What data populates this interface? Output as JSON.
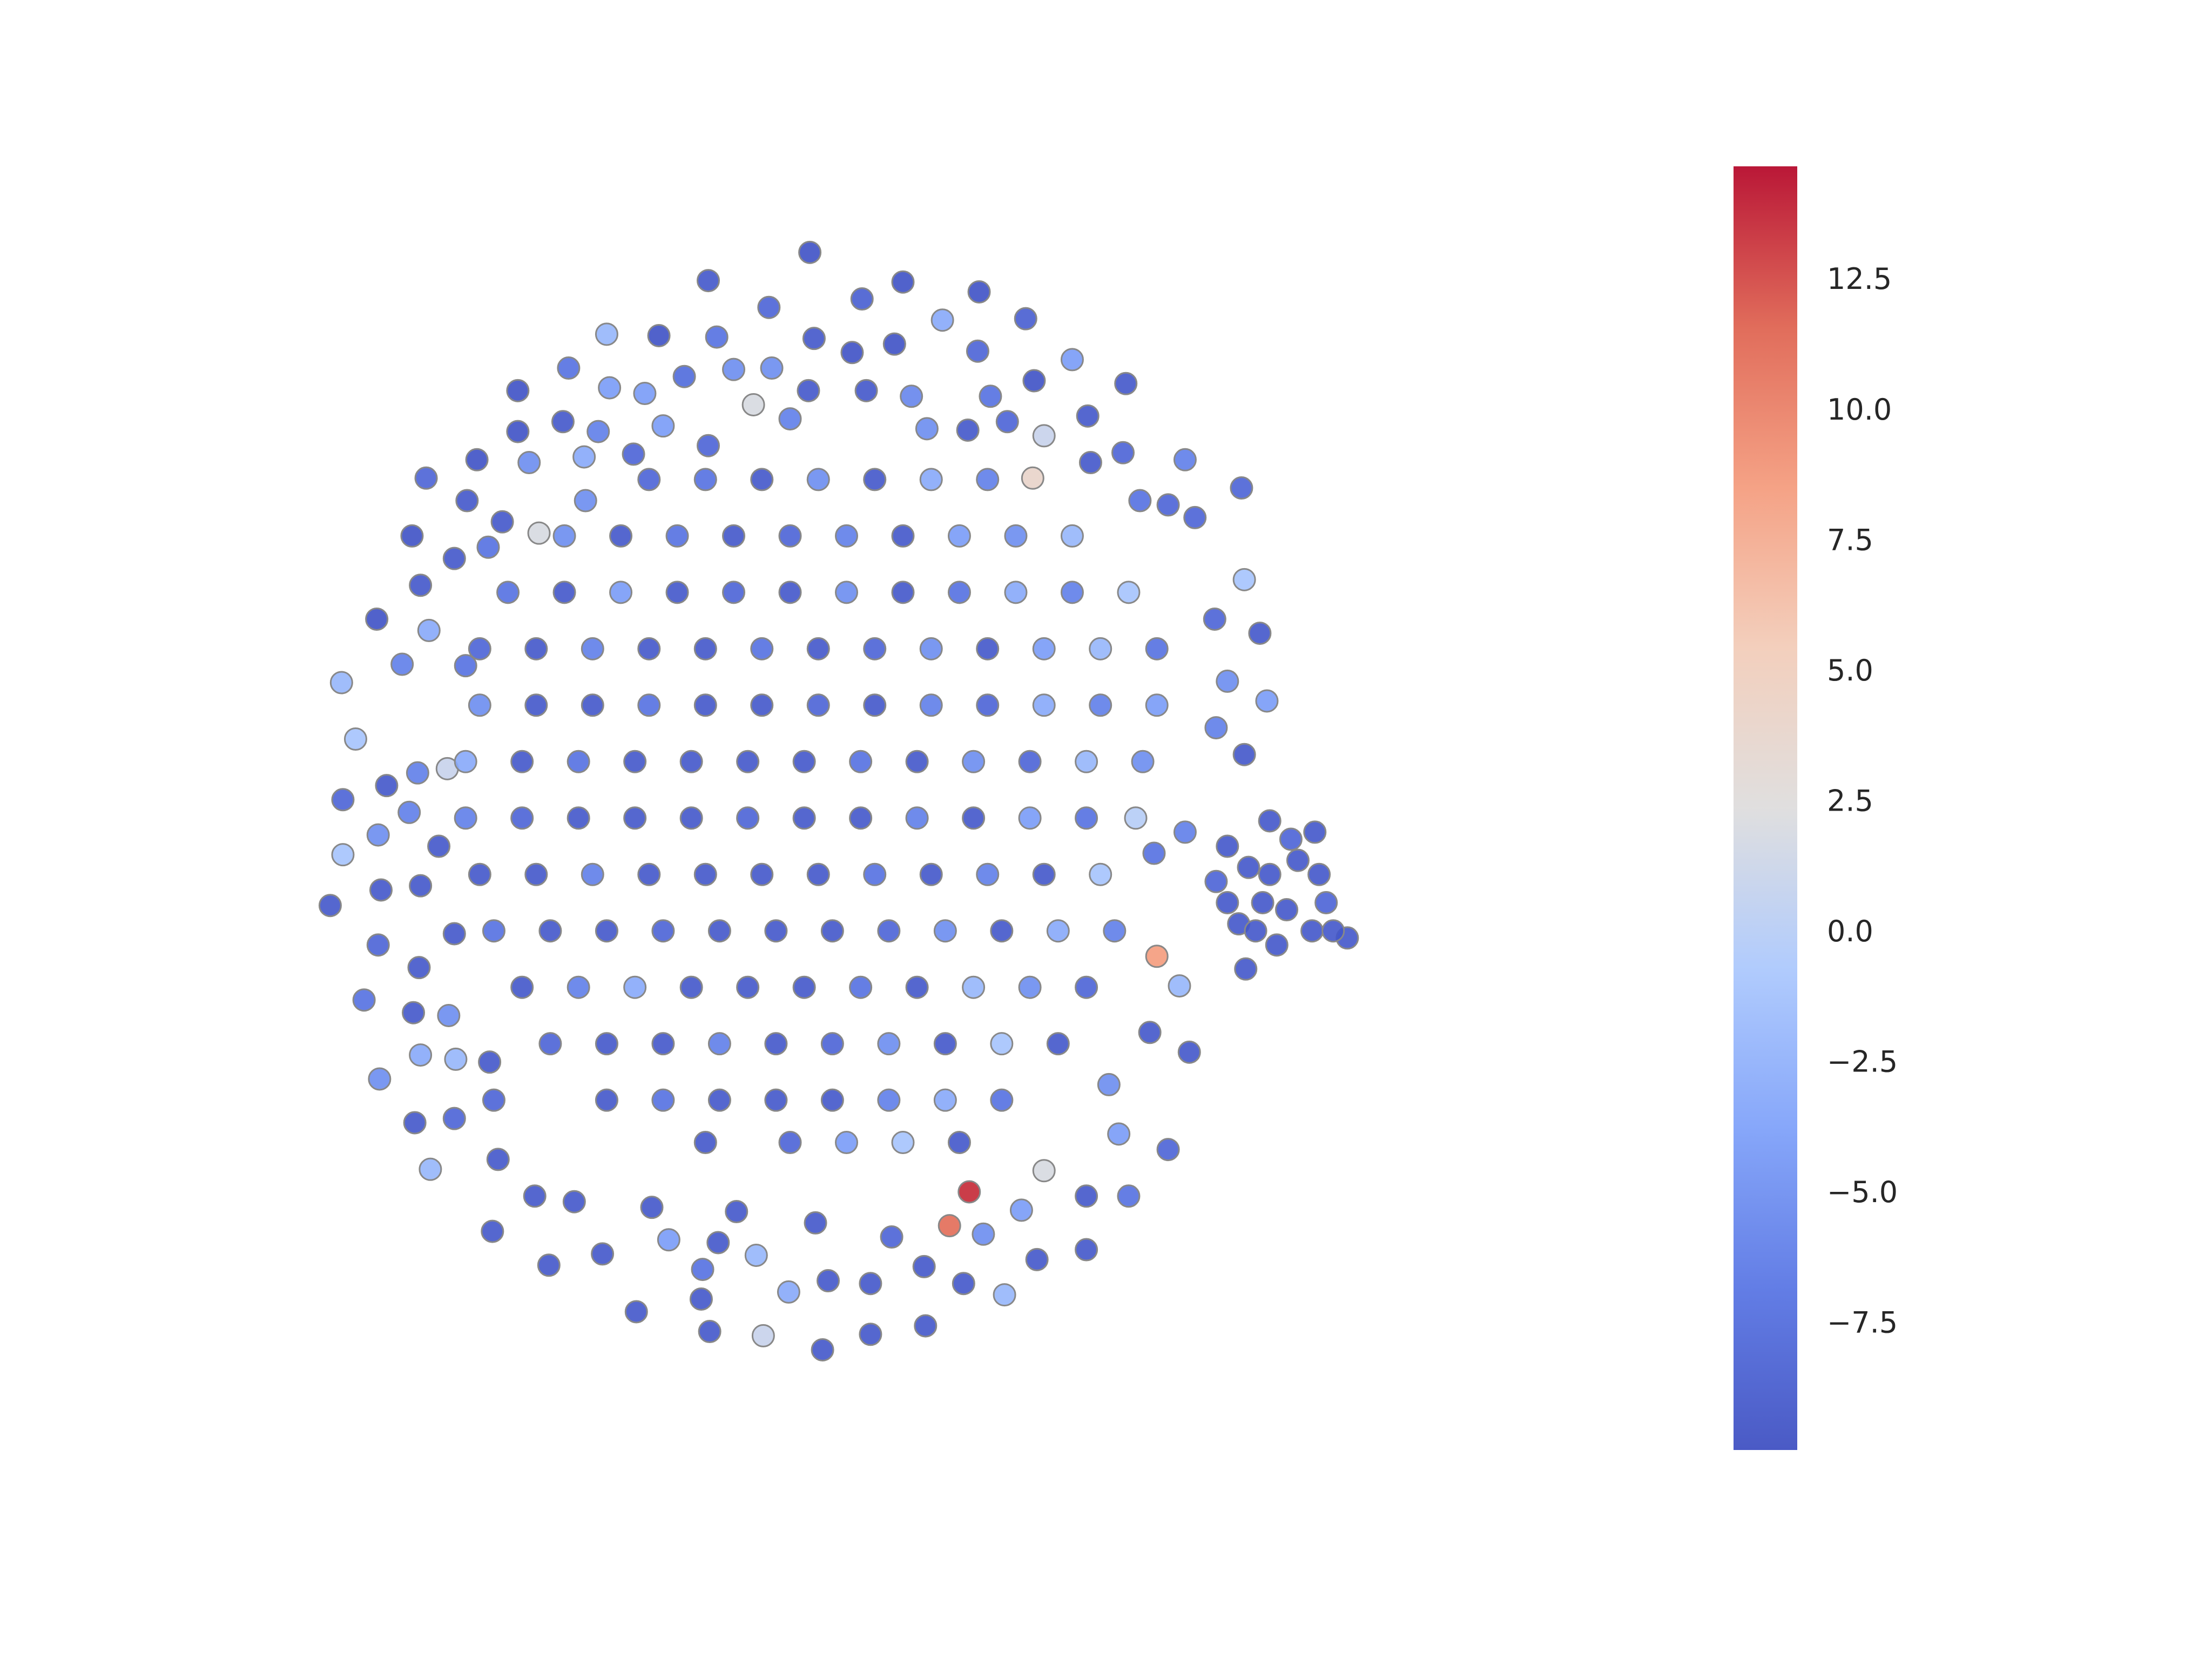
{
  "chart_data": {
    "type": "scatter",
    "x": [
      -26,
      -98,
      40,
      11,
      94,
      127,
      -55,
      -170,
      -133,
      -92,
      -23,
      4,
      34,
      68,
      93,
      160,
      -197,
      -115,
      -80,
      -53,
      -27,
      14,
      46,
      133,
      198,
      -233,
      -168,
      -143,
      -66,
      102,
      171,
      140,
      -233,
      -201,
      -176,
      -130,
      -98,
      -40,
      57,
      86,
      114,
      -298,
      -262,
      -225,
      -186,
      -151,
      173,
      196,
      240,
      280,
      132,
      -308,
      -269,
      -244,
      -218,
      -185,
      208,
      228,
      247,
      -278,
      -254,
      -302,
      -333,
      -296,
      282,
      293,
      261,
      -358,
      -315,
      -270,
      270,
      298,
      -348,
      -326,
      -304,
      -283,
      282,
      262,
      -357,
      -310,
      -332,
      -357,
      -289,
      -366,
      -330,
      -302,
      240,
      218,
      -332,
      -303,
      -278,
      -342,
      -307,
      -282,
      220,
      236,
      -302,
      -277,
      -253,
      -331,
      243,
      215,
      186,
      -306,
      -278,
      -250,
      193,
      228,
      -295,
      -247,
      -221,
      -193,
      140,
      170,
      200,
      -251,
      -211,
      -173,
      -126,
      -91,
      -64,
      -102,
      -41,
      -13,
      17,
      55,
      83,
      112,
      135,
      170,
      -149,
      -103,
      -97,
      -59,
      -17,
      17,
      56,
      87,
      73,
      97,
      124,
      32,
      -22,
      -78,
      -138,
      270,
      285,
      300,
      320,
      335,
      340,
      355,
      330,
      312,
      295,
      278,
      262,
      290,
      305,
      283,
      332,
      315,
      300,
      270,
      345,
      -140,
      -100,
      -60,
      -20,
      20,
      60,
      100,
      -200,
      -160,
      -120,
      -80,
      -40,
      0,
      40,
      80,
      120,
      160,
      -240,
      -200,
      -160,
      -120,
      -80,
      -40,
      0,
      40,
      80,
      120,
      160,
      200,
      -260,
      -220,
      -180,
      -140,
      -100,
      -60,
      -20,
      20,
      60,
      100,
      140,
      180,
      220,
      -260,
      -220,
      -180,
      -140,
      -100,
      -60,
      -20,
      20,
      60,
      100,
      140,
      180,
      220,
      -270,
      -230,
      -190,
      -150,
      -110,
      -70,
      -30,
      10,
      50,
      90,
      130,
      170,
      210,
      -270,
      -230,
      -190,
      -150,
      -110,
      -70,
      -30,
      10,
      50,
      90,
      130,
      170,
      205,
      -260,
      -220,
      -180,
      -140,
      -100,
      -60,
      -20,
      20,
      60,
      100,
      140,
      180,
      -250,
      -210,
      -170,
      -130,
      -90,
      -50,
      -10,
      30,
      70,
      110,
      150,
      190,
      -230,
      -190,
      -150,
      -110,
      -70,
      -30,
      10,
      50,
      90,
      130,
      170,
      -210,
      -170,
      -130,
      -90,
      -50,
      -10,
      30,
      70,
      110,
      150,
      -170,
      -130,
      -90,
      -50,
      -10,
      30,
      70,
      110,
      -100,
      -40,
      0,
      40,
      80
    ],
    "values": [
      421,
      401,
      400,
      388,
      393,
      374,
      382,
      363,
      362,
      361,
      360,
      350,
      356,
      373,
      351,
      345,
      339,
      333,
      338,
      339,
      323,
      323,
      319,
      330,
      328,
      323,
      325,
      321,
      313,
      319,
      305,
      291,
      294,
      301,
      294,
      298,
      284,
      303,
      296,
      295,
      301,
      261,
      274,
      272,
      276,
      278,
      272,
      279,
      274,
      254,
      261,
      220,
      245,
      230,
      222,
      245,
      245,
      242,
      233,
      204,
      212,
      185,
      161,
      153,
      189,
      151,
      161,
      116,
      129,
      128,
      117,
      103,
      76,
      43,
      52,
      55,
      65,
      84,
      33,
      24,
      8,
      -6,
      0,
      -42,
      -31,
      -28,
      10,
      -5,
      -70,
      -86,
      -62,
      -109,
      -118,
      -120,
      -78,
      -99,
      -148,
      -151,
      -153,
      -165,
      -146,
      -132,
      -169,
      -196,
      -193,
      -180,
      -204,
      -215,
      -229,
      -222,
      -248,
      -252,
      -230,
      -248,
      -248,
      -273,
      -297,
      -289,
      -279,
      -281,
      -290,
      -300,
      -316,
      -308,
      -310,
      -298,
      -310,
      -318,
      -293,
      -286,
      -330,
      -321,
      -344,
      -347,
      -357,
      -346,
      -340,
      -245,
      -269,
      -275,
      -258,
      -277,
      -267,
      -259,
      -256,
      0,
      -15,
      18,
      -10,
      -20,
      -40,
      -65,
      -60,
      -45,
      -40,
      -55,
      -25,
      -60,
      -70,
      -87,
      10,
      5,
      -20,
      -40,
      -60,
      260,
      260,
      260,
      260,
      260,
      260,
      260,
      220,
      220,
      220,
      220,
      220,
      220,
      220,
      220,
      220,
      220,
      180,
      180,
      180,
      180,
      180,
      180,
      180,
      180,
      180,
      180,
      180,
      180,
      140,
      140,
      140,
      140,
      140,
      140,
      140,
      140,
      140,
      140,
      140,
      140,
      140,
      100,
      100,
      100,
      100,
      100,
      100,
      100,
      100,
      100,
      100,
      100,
      100,
      100,
      60,
      60,
      60,
      60,
      60,
      60,
      60,
      60,
      60,
      60,
      60,
      60,
      60,
      20,
      20,
      20,
      20,
      20,
      20,
      20,
      20,
      20,
      20,
      20,
      20,
      20,
      -20,
      -20,
      -20,
      -20,
      -20,
      -20,
      -20,
      -20,
      -20,
      -20,
      -20,
      -20,
      -60,
      -60,
      -60,
      -60,
      -60,
      -60,
      -60,
      -60,
      -60,
      -60,
      -60,
      -60,
      -100,
      -100,
      -100,
      -100,
      -100,
      -100,
      -100,
      -100,
      -100,
      -100,
      -100,
      -140,
      -140,
      -140,
      -140,
      -140,
      -140,
      -140,
      -140,
      -140,
      -140,
      -180,
      -180,
      -180,
      -180,
      -180,
      -180,
      -180,
      -180,
      -210,
      -210,
      -210,
      -210,
      -210
    ],
    "color_values": [
      -9.5,
      -9,
      -9.5,
      -8.5,
      -9.5,
      -8.5,
      -8,
      -2,
      -9.5,
      -7,
      -9,
      -9.5,
      -9.5,
      -3,
      -8,
      -4,
      -7,
      -7.5,
      -5,
      -5,
      -9,
      -9,
      -5.5,
      -9.5,
      -9,
      -9.5,
      -4,
      -4,
      2,
      -7,
      -9,
      1,
      -9.5,
      -9,
      -6,
      -4,
      -8,
      -6,
      -5,
      -9,
      -8,
      -8,
      -9.5,
      -5,
      -3,
      -8,
      -9,
      -8,
      -6,
      -8,
      4,
      -9.5,
      -9,
      -9,
      2,
      -5,
      -7,
      -8,
      -8,
      -9,
      -7,
      -9,
      -9.5,
      -3,
      -1,
      -9,
      -8,
      -2,
      -6,
      -7,
      -5,
      -4,
      -1,
      -9,
      -6,
      1,
      -9,
      -6,
      -8,
      -6,
      -5,
      -1,
      -9,
      -9,
      -9,
      -9,
      -6,
      -7,
      -8,
      -9,
      -9,
      -7,
      -9,
      -5,
      8.5,
      -2,
      -3,
      -2,
      -9,
      -5,
      -9,
      -9,
      -5,
      -9,
      -8,
      -8,
      -4,
      -8,
      -2,
      -9,
      -9,
      -9,
      2,
      -9,
      -7,
      -9,
      -9,
      -9,
      -4,
      -9,
      -2,
      -7,
      -3,
      -9,
      -9,
      -9,
      -9,
      -2,
      -9,
      -9,
      -9,
      -9,
      -9,
      1,
      -9,
      -9,
      -9,
      13.5,
      11,
      -5,
      -4,
      -8,
      -9,
      -9,
      -9,
      -9,
      -9,
      -9,
      -9,
      -9,
      -8,
      -9,
      -9,
      -9,
      -9,
      -9,
      -8,
      -9,
      -9,
      -9,
      -9,
      -8,
      -9,
      -9,
      -9,
      -8,
      -7,
      -9,
      -5,
      -9,
      -3,
      -6,
      -5,
      -9,
      -7,
      -9,
      -8,
      -6,
      -9,
      -4,
      -5,
      -2,
      -7,
      -9,
      -4,
      -9,
      -8,
      -9,
      -5,
      -9,
      -7,
      -3,
      -6,
      -1,
      -8,
      -9,
      -6,
      -9,
      -9,
      -7,
      -9,
      -8,
      -5,
      -9,
      -4,
      -2,
      -7,
      -5,
      -9,
      -9,
      -7,
      -9,
      -9,
      -8,
      -9,
      -6,
      -8,
      -3,
      -6,
      -4,
      -3,
      -9,
      -7,
      -9,
      -9,
      -9,
      -9,
      -7,
      -9,
      -5,
      -8,
      -2,
      -5,
      -6,
      -8,
      -9,
      -9,
      -9,
      -8,
      -9,
      -9,
      -6,
      -9,
      -4,
      -7,
      0,
      -9,
      -9,
      -6,
      -9,
      -9,
      -9,
      -9,
      -7,
      -9,
      -6,
      -9,
      -1,
      -7,
      -9,
      -9,
      -8,
      -9,
      -9,
      -9,
      -8,
      -5,
      -9,
      -3,
      -6,
      -9,
      -6,
      -3,
      -9,
      -9,
      -9,
      -7,
      -9,
      -2,
      -5,
      -8,
      -8,
      -9,
      -9,
      -6,
      -9,
      -8,
      -5,
      -9,
      -1,
      -9,
      -9,
      -7,
      -9,
      -9,
      -9,
      -6,
      -3,
      -7,
      -9,
      -8,
      -4,
      -1,
      -9
    ],
    "colormap": "coolwarm",
    "clim": [
      -9.9,
      14.7
    ],
    "cticks": [
      {
        "value": -7.5,
        "label": "−7.5"
      },
      {
        "value": -5,
        "label": "−5.0"
      },
      {
        "value": -2.5,
        "label": "−2.5"
      },
      {
        "value": 0,
        "label": "0.0"
      },
      2.5,
      {
        "value": 5,
        "label": "5.0"
      },
      7.5,
      {
        "value": 10,
        "label": "10.0"
      },
      12.5
    ],
    "xlim": [
      -450,
      450
    ],
    "ylim": [
      -500,
      500
    ]
  }
}
